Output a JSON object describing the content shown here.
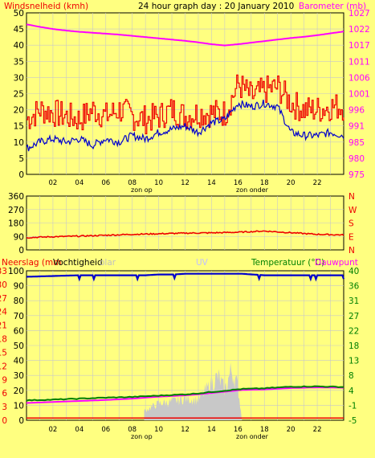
{
  "page": {
    "title": "24 hour graph day : 20 January 2010"
  },
  "colors": {
    "background": "#ffff80",
    "plot": "#ffff80",
    "grid": "#c8c8c8",
    "frame": "#000000",
    "wind": "#0000cc",
    "gust": "#ee0000",
    "pressure": "#ff00ff",
    "direction": "#ee0000",
    "humidity": "#0000cc",
    "temperature": "#008000",
    "dewpoint": "#ff00ff",
    "solar": "#c8c8c8",
    "uv_label": "#c0c0ff",
    "rain_label": "#ee0000",
    "axis_right_temp": "#008000"
  },
  "x_axis": {
    "tick_labels": [
      "02",
      "04",
      "06",
      "08",
      "10",
      "12",
      "14",
      "16",
      "18",
      "20",
      "22"
    ],
    "sunrise_label": "zon op",
    "sunset_label": "zon onder"
  },
  "chart_data": [
    {
      "type": "line",
      "title": "24 hour graph day : 20 January 2010",
      "ylabel": "Windsnelheid (kmh)",
      "ylabel_right": "Barometer (mb)",
      "ylim": [
        0,
        50
      ],
      "yticks": [
        "0",
        "5",
        "10",
        "15",
        "20",
        "25",
        "30",
        "35",
        "40",
        "45",
        "50"
      ],
      "ylim_right": [
        975,
        1027
      ],
      "yticks_right": [
        "975",
        "980",
        "985",
        "991",
        "996",
        "1001",
        "1006",
        "1011",
        "1017",
        "1022",
        "1027"
      ],
      "grid": true,
      "x": [
        0,
        1,
        2,
        3,
        4,
        5,
        6,
        7,
        8,
        9,
        10,
        11,
        12,
        13,
        14,
        15,
        16,
        17,
        18,
        19,
        20,
        21,
        22,
        23,
        24
      ],
      "series": [
        {
          "name": "Windsnelheid (kmh)",
          "axis": "left",
          "values": [
            8,
            10,
            11,
            10,
            11,
            9,
            11,
            10,
            12,
            11,
            13,
            14,
            15,
            13,
            16,
            17,
            22,
            21,
            22,
            21,
            13,
            12,
            12,
            13,
            12
          ]
        },
        {
          "name": "Windsnelheid (kmh) gust",
          "axis": "left",
          "values": [
            17,
            20,
            19,
            18,
            17,
            20,
            18,
            20,
            18,
            17,
            18,
            20,
            18,
            19,
            19,
            19,
            28,
            24,
            26,
            27,
            22,
            20,
            20,
            21,
            21
          ]
        },
        {
          "name": "Barometer (mb)",
          "axis": "right",
          "values": [
            1023.3,
            1022.5,
            1021.8,
            1021.3,
            1020.9,
            1020.6,
            1020.3,
            1020.0,
            1019.6,
            1019.2,
            1018.8,
            1018.4,
            1018.0,
            1017.5,
            1016.9,
            1016.5,
            1016.9,
            1017.4,
            1017.9,
            1018.4,
            1018.9,
            1019.3,
            1019.8,
            1020.4,
            1021.0
          ]
        }
      ]
    },
    {
      "type": "line",
      "ylim": [
        0,
        360
      ],
      "yticks": [
        "0",
        "90",
        "180",
        "270",
        "360"
      ],
      "yticks_right": [
        "N",
        "E",
        "S",
        "W",
        "N"
      ],
      "grid": true,
      "x": [
        0,
        2,
        4,
        6,
        8,
        10,
        12,
        14,
        16,
        18,
        20,
        22,
        24
      ],
      "series": [
        {
          "name": "direction",
          "values": [
            82,
            88,
            92,
            98,
            104,
            108,
            112,
            114,
            118,
            126,
            115,
            104,
            100
          ]
        }
      ]
    },
    {
      "type": "line",
      "ylabel": "Neerslag (mm",
      "labels": [
        "Vochtigheid",
        "olar",
        "UV"
      ],
      "ylabel_right": "Temperatuur (°C)",
      "ylabel_right2": "Dauwpunt",
      "ylim": [
        0,
        100
      ],
      "yticks": [
        "0",
        "10",
        "20",
        "30",
        "40",
        "50",
        "60",
        "70",
        "80",
        "90",
        "100"
      ],
      "yticks_mid": [
        "0",
        "3",
        "6",
        "9",
        "12",
        "15",
        "18",
        "21",
        "24",
        "27",
        "30",
        "33"
      ],
      "ylim_right": [
        -5,
        40
      ],
      "yticks_right": [
        "-5",
        "-1",
        "4",
        "8",
        "13",
        "18",
        "22",
        "27",
        "31",
        "36",
        "40"
      ],
      "grid": true,
      "x": [
        0,
        2,
        4,
        6,
        8,
        9,
        10,
        11,
        12,
        13,
        14,
        14.5,
        15,
        15.5,
        16,
        16.3,
        18,
        20,
        22,
        24
      ],
      "series": [
        {
          "name": "Vochtigheid",
          "axis": "left",
          "values": [
            96,
            96.5,
            97,
            97,
            97,
            97,
            97.5,
            97.5,
            98,
            98,
            98,
            98,
            98,
            98,
            98,
            98,
            97,
            97,
            97,
            97
          ]
        },
        {
          "name": "Temperatuur (°C)",
          "axis": "right",
          "values": [
            1,
            1.2,
            1.5,
            1.8,
            2,
            2.2,
            2.4,
            2.6,
            2.8,
            3.1,
            3.5,
            3.7,
            3.9,
            4.1,
            4.3,
            4.4,
            4.6,
            5.1,
            5.2,
            5
          ]
        },
        {
          "name": "Dauwpunt",
          "axis": "right",
          "values": [
            0.2,
            0.5,
            0.8,
            1.1,
            1.5,
            1.8,
            2.1,
            2.3,
            2.5,
            2.8,
            3.2,
            3.4,
            3.6,
            3.8,
            4,
            4.1,
            4.3,
            4.7,
            4.9,
            4.8
          ]
        },
        {
          "name": "Solar",
          "axis": "left",
          "values": [
            0,
            0,
            0,
            0,
            0,
            6,
            10,
            11,
            13,
            12,
            22,
            26,
            18,
            30,
            20,
            0,
            0,
            0,
            0,
            0
          ]
        },
        {
          "name": "Neerslag (mm",
          "axis": "left",
          "values": [
            1.5,
            1.5,
            1.5,
            1.5,
            1.5,
            1.5,
            1.5,
            1.5,
            1.5,
            1.5,
            1.5,
            1.5,
            1.5,
            1.5,
            1.5,
            1.5,
            1.5,
            1.5,
            1.5,
            1.5
          ]
        }
      ]
    }
  ]
}
